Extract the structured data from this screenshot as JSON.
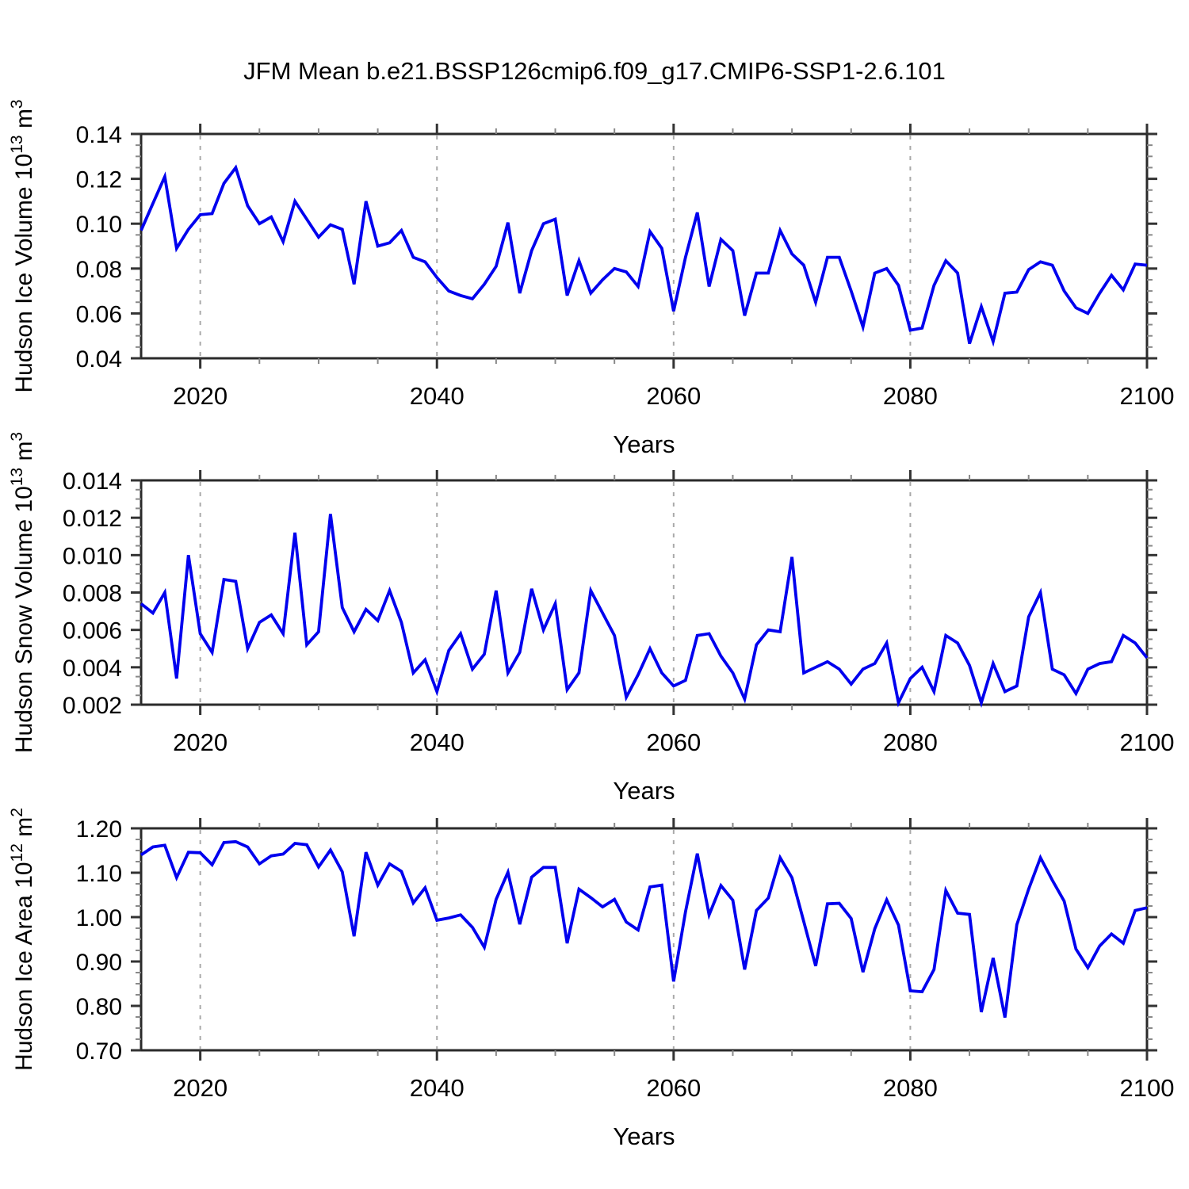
{
  "title": "JFM Mean b.e21.BSSP126cmip6.f09_g17.CMIP6-SSP1-2.6.101",
  "style": {
    "line_color": "#0000EE",
    "frame_color": "#2a2a2a",
    "major_tick_color": "#333333",
    "minor_tick_color": "#888888",
    "grid_color": "#a9a9a9",
    "text_color": "#000000"
  },
  "chart_data": [
    {
      "type": "line",
      "series_name": "Hudson Ice Volume",
      "ylabel_text": "Hudson Ice Volume 10^13 m^3",
      "ylabel_parts": [
        {
          "t": "Hudson Ice Volume 10"
        },
        {
          "t": "13",
          "sup": true
        },
        {
          "t": " m"
        },
        {
          "t": "3",
          "sup": true
        }
      ],
      "xlabel": "Years",
      "x_start": 2015,
      "x_end": 2100,
      "x_step": 1,
      "xticks": [
        2020,
        2040,
        2060,
        2080,
        2100
      ],
      "xtick_labels": [
        "2020",
        "2040",
        "2060",
        "2080",
        "2100"
      ],
      "x_minor_step": 5,
      "grid_years": [
        2020,
        2040,
        2060,
        2080
      ],
      "ylim": [
        0.04,
        0.14
      ],
      "yticks": [
        0.04,
        0.06,
        0.08,
        0.1,
        0.12,
        0.14
      ],
      "ytick_labels": [
        "0.04",
        "0.06",
        "0.08",
        "0.10",
        "0.12",
        "0.14"
      ],
      "y_minor_step": 0.005,
      "values": [
        0.097,
        0.109,
        0.121,
        0.089,
        0.0975,
        0.104,
        0.1045,
        0.118,
        0.125,
        0.108,
        0.1,
        0.103,
        0.092,
        0.11,
        0.102,
        0.094,
        0.0995,
        0.0975,
        0.073,
        0.11,
        0.09,
        0.0915,
        0.097,
        0.085,
        0.083,
        0.076,
        0.07,
        0.068,
        0.0665,
        0.073,
        0.081,
        0.1005,
        0.069,
        0.088,
        0.1,
        0.102,
        0.068,
        0.0835,
        0.069,
        0.075,
        0.08,
        0.0785,
        0.072,
        0.0965,
        0.089,
        0.061,
        0.085,
        0.105,
        0.072,
        0.093,
        0.088,
        0.059,
        0.078,
        0.078,
        0.097,
        0.0865,
        0.0815,
        0.065,
        0.085,
        0.085,
        0.07,
        0.054,
        0.078,
        0.08,
        0.0725,
        0.0525,
        0.0535,
        0.0725,
        0.0835,
        0.078,
        0.0465,
        0.063,
        0.0475,
        0.069,
        0.0695,
        0.0795,
        0.083,
        0.0815,
        0.07,
        0.0625,
        0.06,
        0.069,
        0.077,
        0.0705,
        0.082,
        0.0815
      ]
    },
    {
      "type": "line",
      "series_name": "Hudson Snow Volume",
      "ylabel_text": "Hudson Snow Volume 10^13 m^3",
      "ylabel_parts": [
        {
          "t": "Hudson Snow Volume 10"
        },
        {
          "t": "13",
          "sup": true
        },
        {
          "t": " m"
        },
        {
          "t": "3",
          "sup": true
        }
      ],
      "xlabel": "Years",
      "x_start": 2015,
      "x_end": 2100,
      "x_step": 1,
      "xticks": [
        2020,
        2040,
        2060,
        2080,
        2100
      ],
      "xtick_labels": [
        "2020",
        "2040",
        "2060",
        "2080",
        "2100"
      ],
      "x_minor_step": 5,
      "grid_years": [
        2020,
        2040,
        2060,
        2080
      ],
      "ylim": [
        0.002,
        0.014
      ],
      "yticks": [
        0.002,
        0.004,
        0.006,
        0.008,
        0.01,
        0.012,
        0.014
      ],
      "ytick_labels": [
        "0.002",
        "0.004",
        "0.006",
        "0.008",
        "0.010",
        "0.012",
        "0.014"
      ],
      "y_minor_step": 0.0005,
      "values": [
        0.0074,
        0.0069,
        0.008,
        0.0034,
        0.01,
        0.0058,
        0.0048,
        0.0087,
        0.0086,
        0.005,
        0.0064,
        0.0068,
        0.0058,
        0.0112,
        0.0052,
        0.0059,
        0.0122,
        0.0072,
        0.0059,
        0.0071,
        0.0065,
        0.0081,
        0.0064,
        0.0037,
        0.0044,
        0.0027,
        0.0049,
        0.0058,
        0.0039,
        0.0047,
        0.0081,
        0.0037,
        0.0048,
        0.0082,
        0.006,
        0.0074,
        0.0028,
        0.0037,
        0.0081,
        0.0069,
        0.0057,
        0.0024,
        0.0036,
        0.005,
        0.0037,
        0.003,
        0.0033,
        0.0057,
        0.0058,
        0.0046,
        0.0037,
        0.0023,
        0.0052,
        0.006,
        0.0059,
        0.0099,
        0.0037,
        0.004,
        0.0043,
        0.0039,
        0.0031,
        0.0039,
        0.0042,
        0.0053,
        0.0021,
        0.0034,
        0.004,
        0.0027,
        0.0057,
        0.0053,
        0.0041,
        0.0021,
        0.0042,
        0.0027,
        0.003,
        0.0067,
        0.008,
        0.0039,
        0.0036,
        0.0026,
        0.0039,
        0.0042,
        0.0043,
        0.0057,
        0.0053,
        0.0045
      ]
    },
    {
      "type": "line",
      "series_name": "Hudson Ice Area",
      "ylabel_text": "Hudson Ice Area 10^12 m^2",
      "ylabel_parts": [
        {
          "t": "Hudson Ice Area 10"
        },
        {
          "t": "12",
          "sup": true
        },
        {
          "t": " m"
        },
        {
          "t": "2",
          "sup": true
        }
      ],
      "xlabel": "Years",
      "x_start": 2015,
      "x_end": 2100,
      "x_step": 1,
      "xticks": [
        2020,
        2040,
        2060,
        2080,
        2100
      ],
      "xtick_labels": [
        "2020",
        "2040",
        "2060",
        "2080",
        "2100"
      ],
      "x_minor_step": 5,
      "grid_years": [
        2020,
        2040,
        2060,
        2080
      ],
      "ylim": [
        0.7,
        1.2
      ],
      "yticks": [
        0.7,
        0.8,
        0.9,
        1.0,
        1.1,
        1.2
      ],
      "ytick_labels": [
        "0.70",
        "0.80",
        "0.90",
        "1.00",
        "1.10",
        "1.20"
      ],
      "y_minor_step": 0.025,
      "values": [
        1.14,
        1.158,
        1.162,
        1.089,
        1.146,
        1.145,
        1.118,
        1.168,
        1.17,
        1.158,
        1.12,
        1.138,
        1.142,
        1.166,
        1.163,
        1.113,
        1.151,
        1.102,
        0.957,
        1.146,
        1.072,
        1.12,
        1.103,
        1.032,
        1.066,
        0.993,
        0.998,
        1.005,
        0.977,
        0.932,
        1.04,
        1.101,
        0.984,
        1.09,
        1.112,
        1.112,
        0.941,
        1.063,
        1.044,
        1.023,
        1.04,
        0.989,
        0.971,
        1.068,
        1.072,
        0.855,
        1.012,
        1.143,
        1.005,
        1.071,
        1.038,
        0.882,
        1.015,
        1.043,
        1.134,
        1.089,
        0.99,
        0.89,
        1.03,
        1.031,
        0.997,
        0.876,
        0.974,
        1.039,
        0.982,
        0.834,
        0.832,
        0.882,
        1.06,
        1.009,
        1.006,
        0.786,
        0.908,
        0.774,
        0.983,
        1.063,
        1.134,
        1.083,
        1.036,
        0.928,
        0.886,
        0.935,
        0.962,
        0.941,
        1.015,
        1.021
      ]
    }
  ]
}
